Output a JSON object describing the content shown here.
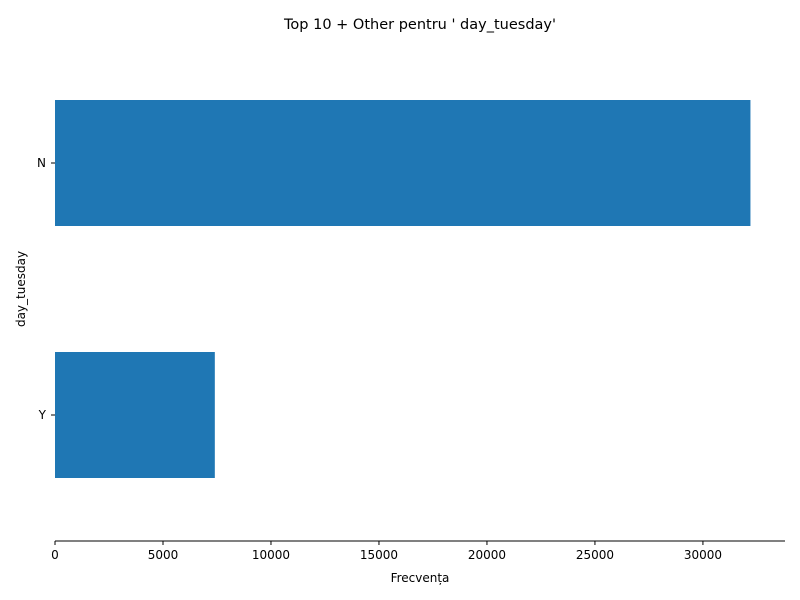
{
  "chart_data": {
    "type": "bar",
    "orientation": "horizontal",
    "title": "Top 10 + Other pentru ' day_tuesday'",
    "xlabel": "Frecvența",
    "ylabel": "day_tuesday",
    "categories": [
      "N",
      "Y"
    ],
    "values": [
      32200,
      7400
    ],
    "xlim": [
      0,
      33800
    ],
    "xticks": [
      0,
      5000,
      10000,
      15000,
      20000,
      25000,
      30000
    ],
    "grid": false,
    "bar_color": "#1f77b4"
  }
}
